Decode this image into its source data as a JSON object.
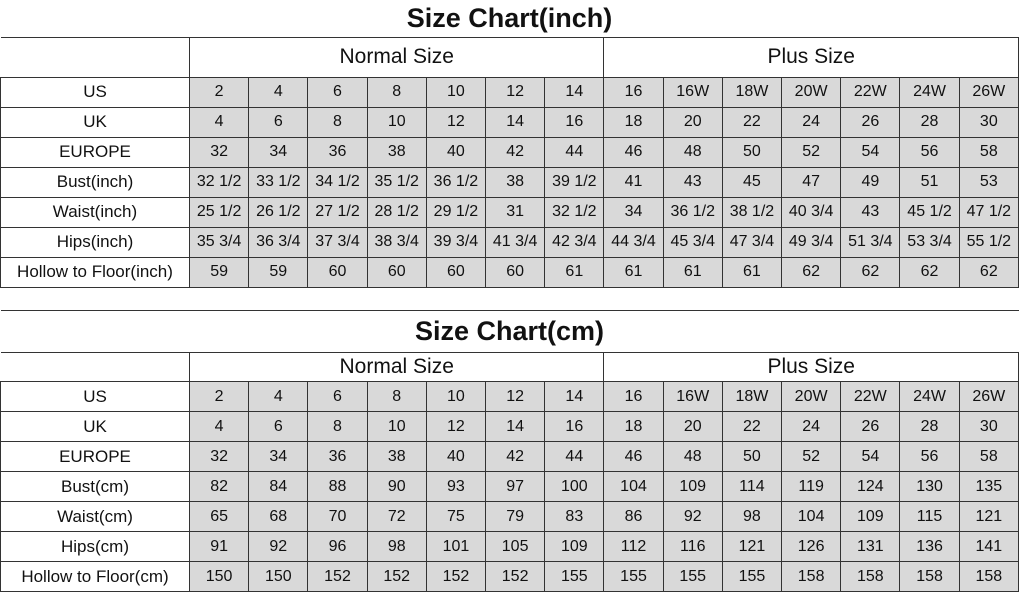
{
  "tables": [
    {
      "title": "Size Chart(inch)",
      "groups": [
        "Normal Size",
        "Plus Size"
      ],
      "rows": [
        {
          "label": "US",
          "values": [
            "2",
            "4",
            "6",
            "8",
            "10",
            "12",
            "14",
            "16",
            "16W",
            "18W",
            "20W",
            "22W",
            "24W",
            "26W"
          ]
        },
        {
          "label": "UK",
          "values": [
            "4",
            "6",
            "8",
            "10",
            "12",
            "14",
            "16",
            "18",
            "20",
            "22",
            "24",
            "26",
            "28",
            "30"
          ]
        },
        {
          "label": "EUROPE",
          "values": [
            "32",
            "34",
            "36",
            "38",
            "40",
            "42",
            "44",
            "46",
            "48",
            "50",
            "52",
            "54",
            "56",
            "58"
          ]
        },
        {
          "label": "Bust(inch)",
          "values": [
            "32 1/2",
            "33 1/2",
            "34 1/2",
            "35 1/2",
            "36 1/2",
            "38",
            "39 1/2",
            "41",
            "43",
            "45",
            "47",
            "49",
            "51",
            "53"
          ]
        },
        {
          "label": "Waist(inch)",
          "values": [
            "25 1/2",
            "26 1/2",
            "27 1/2",
            "28 1/2",
            "29 1/2",
            "31",
            "32 1/2",
            "34",
            "36 1/2",
            "38 1/2",
            "40 3/4",
            "43",
            "45 1/2",
            "47 1/2"
          ]
        },
        {
          "label": "Hips(inch)",
          "values": [
            "35 3/4",
            "36 3/4",
            "37 3/4",
            "38 3/4",
            "39 3/4",
            "41 3/4",
            "42 3/4",
            "44 3/4",
            "45 3/4",
            "47 3/4",
            "49 3/4",
            "51 3/4",
            "53 3/4",
            "55 1/2"
          ]
        },
        {
          "label": "Hollow to Floor(inch)",
          "values": [
            "59",
            "59",
            "60",
            "60",
            "60",
            "60",
            "61",
            "61",
            "61",
            "61",
            "62",
            "62",
            "62",
            "62"
          ]
        }
      ]
    },
    {
      "title": "Size Chart(cm)",
      "groups": [
        "Normal Size",
        "Plus Size"
      ],
      "rows": [
        {
          "label": "US",
          "values": [
            "2",
            "4",
            "6",
            "8",
            "10",
            "12",
            "14",
            "16",
            "16W",
            "18W",
            "20W",
            "22W",
            "24W",
            "26W"
          ]
        },
        {
          "label": "UK",
          "values": [
            "4",
            "6",
            "8",
            "10",
            "12",
            "14",
            "16",
            "18",
            "20",
            "22",
            "24",
            "26",
            "28",
            "30"
          ]
        },
        {
          "label": "EUROPE",
          "values": [
            "32",
            "34",
            "36",
            "38",
            "40",
            "42",
            "44",
            "46",
            "48",
            "50",
            "52",
            "54",
            "56",
            "58"
          ]
        },
        {
          "label": "Bust(cm)",
          "values": [
            "82",
            "84",
            "88",
            "90",
            "93",
            "97",
            "100",
            "104",
            "109",
            "114",
            "119",
            "124",
            "130",
            "135"
          ]
        },
        {
          "label": "Waist(cm)",
          "values": [
            "65",
            "68",
            "70",
            "72",
            "75",
            "79",
            "83",
            "86",
            "92",
            "98",
            "104",
            "109",
            "115",
            "121"
          ]
        },
        {
          "label": "Hips(cm)",
          "values": [
            "91",
            "92",
            "96",
            "98",
            "101",
            "105",
            "109",
            "112",
            "116",
            "121",
            "126",
            "131",
            "136",
            "141"
          ]
        },
        {
          "label": "Hollow to Floor(cm)",
          "values": [
            "150",
            "150",
            "152",
            "152",
            "152",
            "152",
            "155",
            "155",
            "155",
            "155",
            "158",
            "158",
            "158",
            "158"
          ]
        }
      ]
    }
  ],
  "colors": {
    "cell_fill": "#d9d9d9",
    "border": "#333333"
  }
}
